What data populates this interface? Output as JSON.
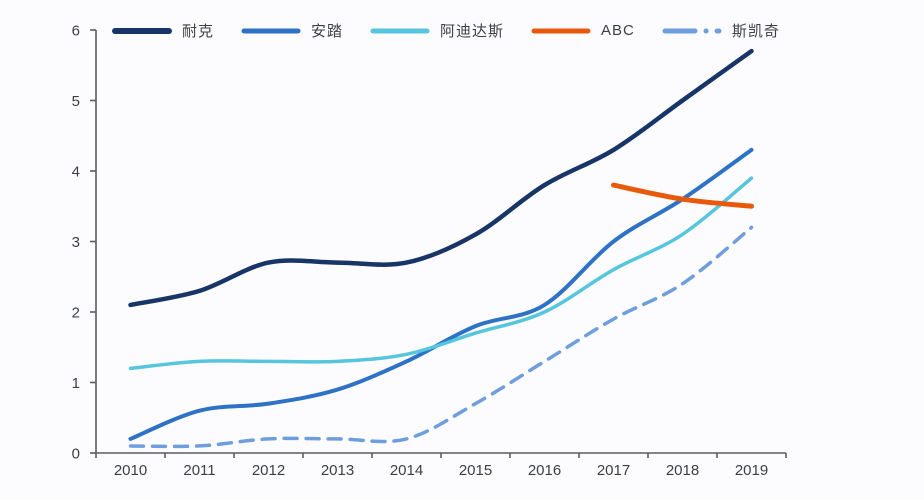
{
  "page": {
    "background": "#fcfcfe"
  },
  "chart_data": {
    "type": "line",
    "title": "",
    "xlabel": "",
    "ylabel": "",
    "categories": [
      "2010",
      "2011",
      "2012",
      "2013",
      "2014",
      "2015",
      "2016",
      "2017",
      "2018",
      "2019"
    ],
    "yticks": [
      "0",
      "1",
      "2",
      "3",
      "4",
      "5",
      "6"
    ],
    "ylim": [
      0,
      6
    ],
    "grid": false,
    "legend_position": "top",
    "axis_color": "#595c60",
    "tick_label_color": "#3c4045",
    "series": [
      {
        "name": "耐克",
        "color": "#173566",
        "style": "solid",
        "width": 4.5,
        "values": [
          2.1,
          2.3,
          2.7,
          2.7,
          2.7,
          3.1,
          3.8,
          4.3,
          5.0,
          5.7
        ]
      },
      {
        "name": "安踏",
        "color": "#2e72c6",
        "style": "solid",
        "width": 4,
        "values": [
          0.2,
          0.6,
          0.7,
          0.9,
          1.3,
          1.8,
          2.1,
          3.0,
          3.6,
          4.3
        ]
      },
      {
        "name": "阿迪达斯",
        "color": "#55c6dd",
        "style": "solid",
        "width": 3.5,
        "values": [
          1.2,
          1.3,
          1.3,
          1.3,
          1.4,
          1.7,
          2.0,
          2.6,
          3.1,
          3.9
        ]
      },
      {
        "name": "ABC",
        "color": "#e8590c",
        "style": "solid",
        "width": 5,
        "values": [
          null,
          null,
          null,
          null,
          null,
          null,
          null,
          3.8,
          3.6,
          3.5
        ]
      },
      {
        "name": "斯凯奇",
        "color": "#6e9edd",
        "style": "dashed",
        "width": 3.5,
        "values": [
          0.1,
          0.1,
          0.2,
          0.2,
          0.2,
          0.7,
          1.3,
          1.9,
          2.4,
          3.2
        ]
      }
    ]
  }
}
